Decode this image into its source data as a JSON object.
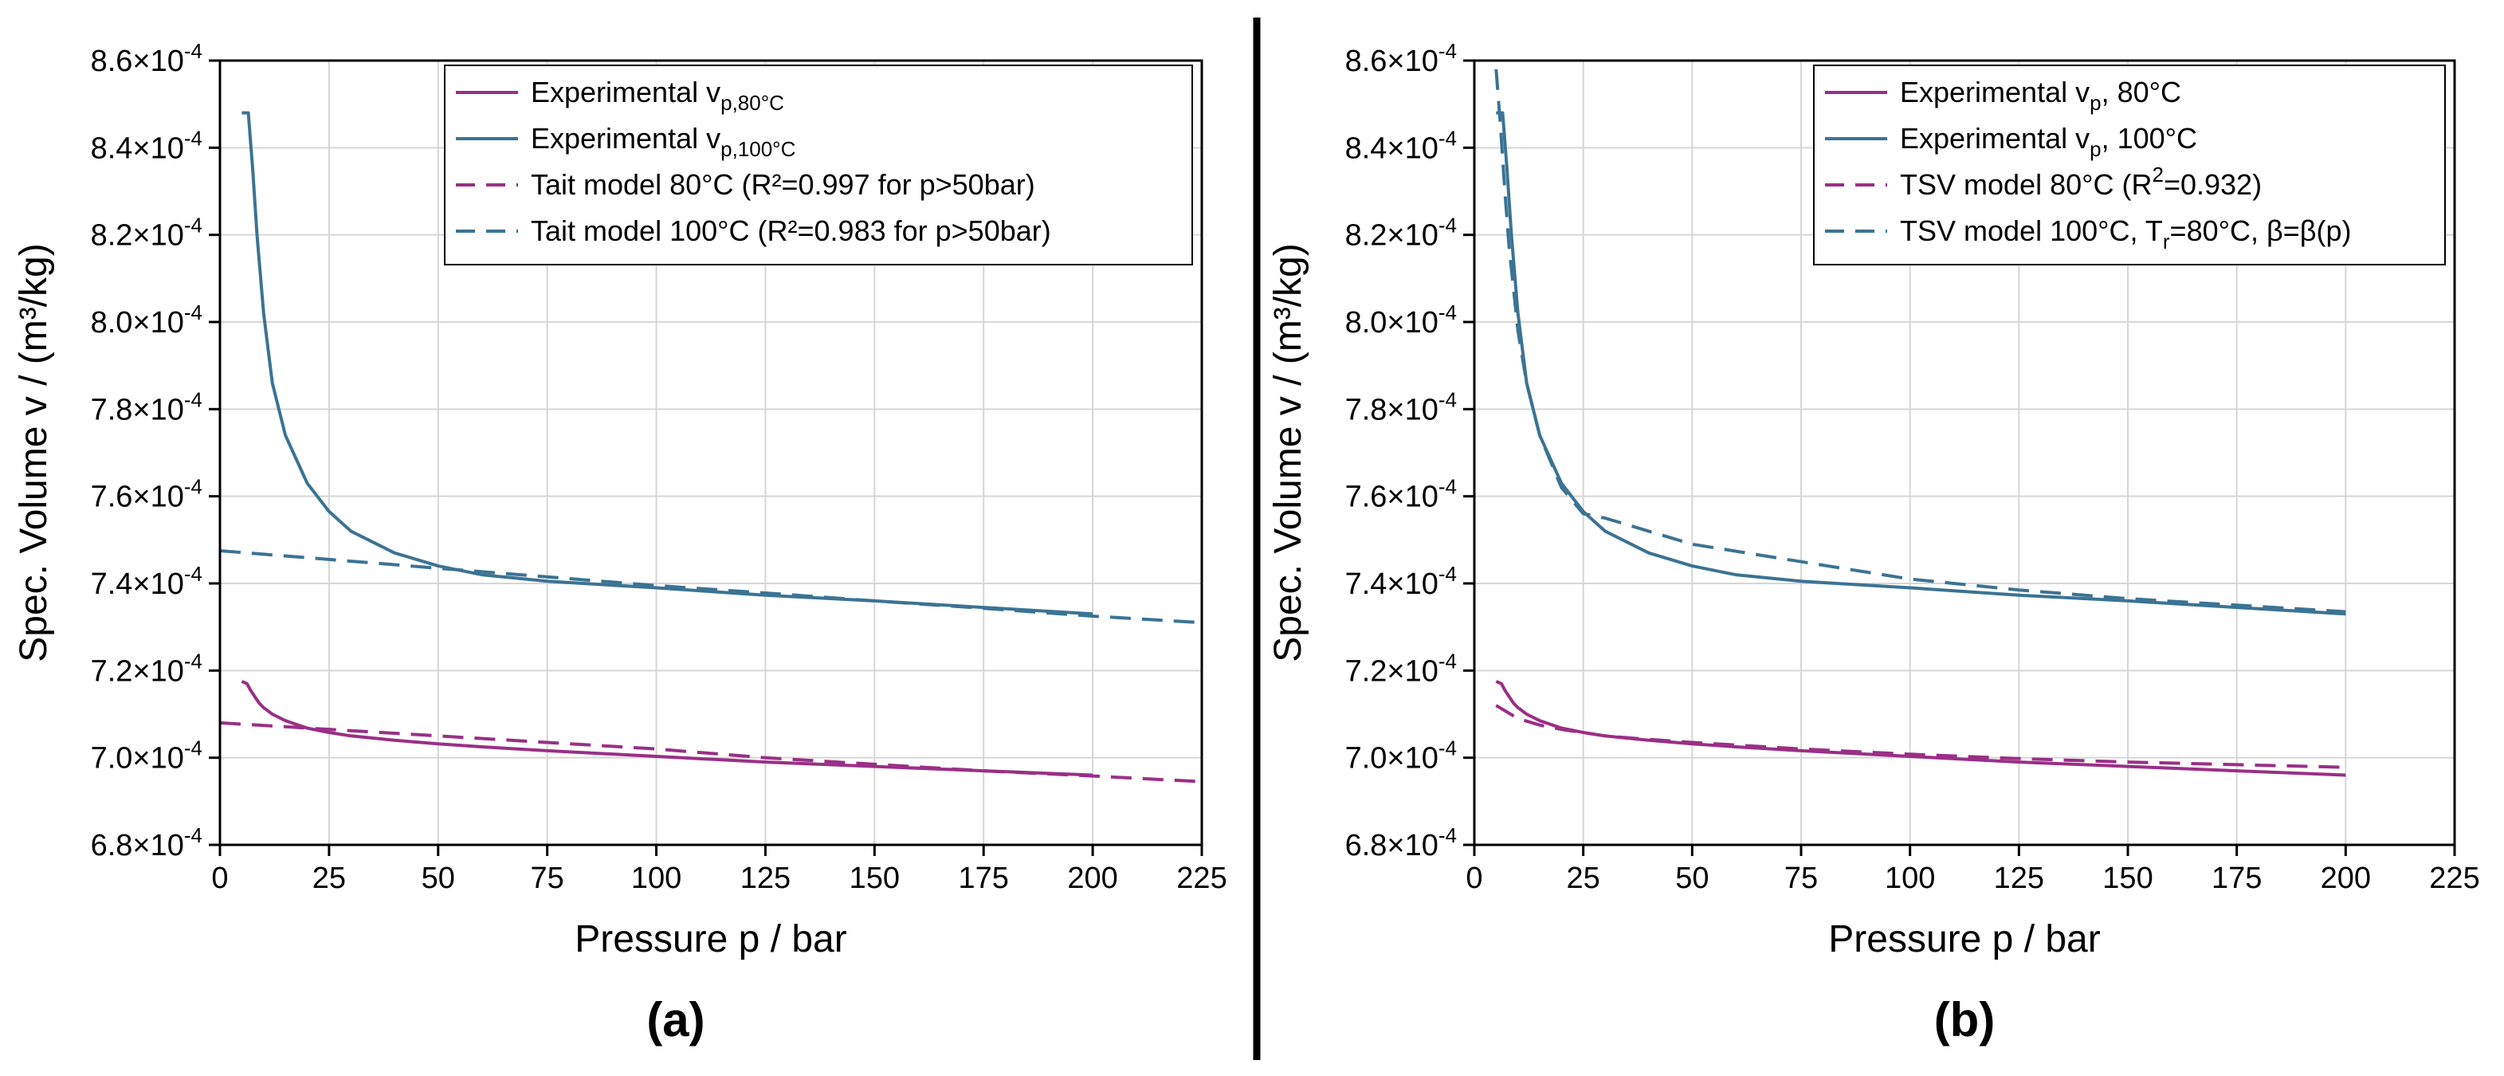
{
  "colors": {
    "c80": "#9a2f86",
    "c100": "#3b7393",
    "grid": "#d6d6d6",
    "axis": "#000000"
  },
  "chart_data": [
    {
      "type": "line",
      "panel_label": "(a)",
      "xlabel": "Pressure p / bar",
      "ylabel": "Spec. Volume v / (m³/kg)",
      "xlim": [
        0,
        225
      ],
      "ylim": [
        0.00068,
        0.00086
      ],
      "xticks": [
        0,
        25,
        50,
        75,
        100,
        125,
        150,
        175,
        200,
        225
      ],
      "xtick_labels": [
        "0",
        "25",
        "50",
        "75",
        "100",
        "125",
        "150",
        "175",
        "200",
        "225"
      ],
      "yticks": [
        0.00068,
        0.0007,
        0.00072,
        0.00074,
        0.00076,
        0.00078,
        0.0008,
        0.00082,
        0.00084,
        0.00086
      ],
      "ytick_mantissas": [
        "6.8",
        "7.0",
        "7.2",
        "7.4",
        "7.6",
        "7.8",
        "8.0",
        "8.2",
        "8.4",
        "8.6"
      ],
      "ytick_exponent": "-4",
      "grid": true,
      "legend_position": "top-right",
      "series": [
        {
          "legend_main": "Experimental v",
          "legend_sub": "p,80°C",
          "legend_tail": "",
          "color": "c80",
          "dash": false,
          "x": [
            5,
            6.2,
            7,
            8,
            9,
            10,
            12,
            15,
            20,
            25,
            30,
            40,
            50,
            60,
            75,
            100,
            125,
            150,
            175,
            200
          ],
          "y": [
            0.0007175,
            0.000717,
            0.0007155,
            0.000714,
            0.0007125,
            0.0007115,
            0.00071,
            0.0007085,
            0.0007068,
            0.0007058,
            0.000705,
            0.000704,
            0.0007032,
            0.0007025,
            0.0007016,
            0.0007003,
            0.000699,
            0.000698,
            0.000697,
            0.000696
          ]
        },
        {
          "legend_main": "Experimental v",
          "legend_sub": "p,100°C",
          "legend_tail": "",
          "color": "c100",
          "dash": false,
          "x": [
            5,
            6.5,
            7.5,
            8.5,
            10,
            12,
            15,
            20,
            25,
            30,
            40,
            50,
            60,
            75,
            100,
            125,
            150,
            175,
            200
          ],
          "y": [
            0.000848,
            0.000848,
            0.000835,
            0.00082,
            0.000802,
            0.000786,
            0.000774,
            0.000763,
            0.0007565,
            0.000752,
            0.000747,
            0.000744,
            0.000742,
            0.0007405,
            0.000739,
            0.0007373,
            0.000736,
            0.0007345,
            0.000733
          ]
        },
        {
          "legend_main": "Tait model 80°C (R²=0.997 for p>50bar)",
          "legend_sub": "",
          "legend_tail": "",
          "color": "c80",
          "dash": true,
          "x": [
            0,
            25,
            50,
            75,
            100,
            125,
            150,
            175,
            200,
            225
          ],
          "y": [
            0.000708,
            0.0007065,
            0.000705,
            0.0007035,
            0.000702,
            0.0007,
            0.0006985,
            0.000697,
            0.0006958,
            0.0006945
          ]
        },
        {
          "legend_main": "Tait model 100°C (R²=0.983 for p>50bar)",
          "legend_sub": "",
          "legend_tail": "",
          "color": "c100",
          "dash": true,
          "x": [
            0,
            25,
            50,
            75,
            100,
            125,
            150,
            175,
            200,
            225
          ],
          "y": [
            0.0007475,
            0.0007455,
            0.0007435,
            0.0007415,
            0.0007395,
            0.0007378,
            0.000736,
            0.0007343,
            0.0007325,
            0.000731
          ]
        }
      ]
    },
    {
      "type": "line",
      "panel_label": "(b)",
      "xlabel": "Pressure p / bar",
      "ylabel": "Spec. Volume v / (m³/kg)",
      "xlim": [
        0,
        225
      ],
      "ylim": [
        0.00068,
        0.00086
      ],
      "xticks": [
        0,
        25,
        50,
        75,
        100,
        125,
        150,
        175,
        200,
        225
      ],
      "xtick_labels": [
        "0",
        "25",
        "50",
        "75",
        "100",
        "125",
        "150",
        "175",
        "200",
        "225"
      ],
      "yticks": [
        0.00068,
        0.0007,
        0.00072,
        0.00074,
        0.00076,
        0.00078,
        0.0008,
        0.00082,
        0.00084,
        0.00086
      ],
      "ytick_mantissas": [
        "6.8",
        "7.0",
        "7.2",
        "7.4",
        "7.6",
        "7.8",
        "8.0",
        "8.2",
        "8.4",
        "8.6"
      ],
      "ytick_exponent": "-4",
      "grid": true,
      "legend_position": "top-right",
      "series": [
        {
          "legend_main": "Experimental v",
          "legend_sub": "p",
          "legend_tail": ", 80°C",
          "color": "c80",
          "dash": false,
          "x": [
            5,
            6.2,
            7,
            8,
            9,
            10,
            12,
            15,
            20,
            25,
            30,
            40,
            50,
            60,
            75,
            100,
            125,
            150,
            175,
            200
          ],
          "y": [
            0.0007175,
            0.000717,
            0.0007155,
            0.000714,
            0.0007125,
            0.0007115,
            0.00071,
            0.0007085,
            0.0007068,
            0.0007058,
            0.000705,
            0.000704,
            0.0007032,
            0.0007025,
            0.0007016,
            0.0007003,
            0.000699,
            0.000698,
            0.000697,
            0.000696
          ]
        },
        {
          "legend_main": "Experimental v",
          "legend_sub": "p",
          "legend_tail": ", 100°C",
          "color": "c100",
          "dash": false,
          "x": [
            5,
            6.5,
            7.5,
            8.5,
            10,
            12,
            15,
            20,
            25,
            30,
            40,
            50,
            60,
            75,
            100,
            125,
            150,
            175,
            200
          ],
          "y": [
            0.000848,
            0.000848,
            0.000835,
            0.00082,
            0.000802,
            0.000786,
            0.000774,
            0.000763,
            0.0007565,
            0.000752,
            0.000747,
            0.000744,
            0.000742,
            0.0007405,
            0.000739,
            0.0007373,
            0.000736,
            0.0007345,
            0.000733
          ]
        },
        {
          "legend_main": "TSV model 80°C (R",
          "legend_sup": "2",
          "legend_tail": "=0.932)",
          "color": "c80",
          "dash": true,
          "x": [
            5,
            10,
            15,
            20,
            30,
            40,
            50,
            75,
            100,
            125,
            150,
            175,
            200
          ],
          "y": [
            0.000712,
            0.000709,
            0.0007075,
            0.0007065,
            0.000705,
            0.0007042,
            0.0007035,
            0.000702,
            0.0007008,
            0.0006998,
            0.000699,
            0.0006984,
            0.0006978
          ]
        },
        {
          "legend_main": "TSV model 100°C, T",
          "legend_sub": "r",
          "legend_tail": "=80°C, β=β(p)",
          "color": "c100",
          "dash": true,
          "x": [
            5,
            6,
            7,
            8,
            10,
            12,
            15,
            20,
            25,
            30,
            40,
            50,
            75,
            100,
            125,
            150,
            175,
            200
          ],
          "y": [
            0.000858,
            0.000845,
            0.00083,
            0.000817,
            0.000798,
            0.000786,
            0.000774,
            0.000762,
            0.000756,
            0.000755,
            0.000752,
            0.000749,
            0.000745,
            0.000741,
            0.0007385,
            0.0007365,
            0.000735,
            0.0007335
          ]
        }
      ]
    }
  ]
}
